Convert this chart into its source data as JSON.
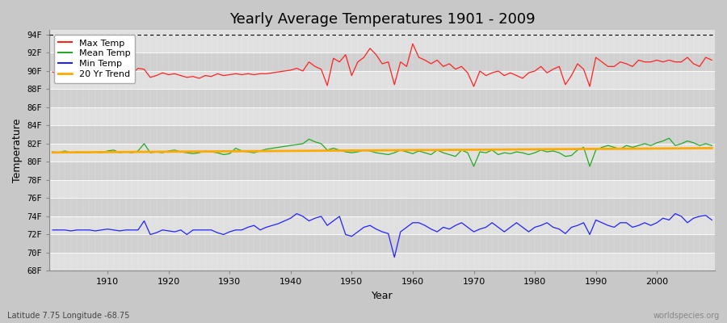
{
  "title": "Yearly Average Temperatures 1901 - 2009",
  "xlabel": "Year",
  "ylabel": "Temperature",
  "subtitle_left": "Latitude 7.75 Longitude -68.75",
  "subtitle_right": "worldspecies.org",
  "years": [
    1901,
    1902,
    1903,
    1904,
    1905,
    1906,
    1907,
    1908,
    1909,
    1910,
    1911,
    1912,
    1913,
    1914,
    1915,
    1916,
    1917,
    1918,
    1919,
    1920,
    1921,
    1922,
    1923,
    1924,
    1925,
    1926,
    1927,
    1928,
    1929,
    1930,
    1931,
    1932,
    1933,
    1934,
    1935,
    1936,
    1937,
    1938,
    1939,
    1940,
    1941,
    1942,
    1943,
    1944,
    1945,
    1946,
    1947,
    1948,
    1949,
    1950,
    1951,
    1952,
    1953,
    1954,
    1955,
    1956,
    1957,
    1958,
    1959,
    1960,
    1961,
    1962,
    1963,
    1964,
    1965,
    1966,
    1967,
    1968,
    1969,
    1970,
    1971,
    1972,
    1973,
    1974,
    1975,
    1976,
    1977,
    1978,
    1979,
    1980,
    1981,
    1982,
    1983,
    1984,
    1985,
    1986,
    1987,
    1988,
    1989,
    1990,
    1991,
    1992,
    1993,
    1994,
    1995,
    1996,
    1997,
    1998,
    1999,
    2000,
    2001,
    2002,
    2003,
    2004,
    2005,
    2006,
    2007,
    2008,
    2009
  ],
  "max_temp": [
    89.9,
    89.6,
    90.1,
    89.8,
    89.7,
    89.5,
    89.6,
    89.8,
    89.4,
    89.7,
    91.0,
    89.8,
    89.5,
    89.7,
    90.3,
    90.2,
    89.3,
    89.5,
    89.8,
    89.6,
    89.7,
    89.5,
    89.3,
    89.4,
    89.2,
    89.5,
    89.4,
    89.7,
    89.5,
    89.6,
    89.7,
    89.6,
    89.7,
    89.6,
    89.7,
    89.7,
    89.8,
    89.9,
    90.0,
    90.1,
    90.3,
    90.0,
    91.0,
    90.5,
    90.2,
    88.4,
    91.4,
    91.0,
    91.8,
    89.5,
    91.0,
    91.5,
    92.5,
    91.8,
    90.8,
    91.0,
    88.5,
    91.0,
    90.5,
    93.0,
    91.5,
    91.2,
    90.8,
    91.2,
    90.5,
    90.8,
    90.2,
    90.5,
    89.8,
    88.3,
    90.0,
    89.5,
    89.8,
    90.0,
    89.5,
    89.8,
    89.5,
    89.2,
    89.8,
    90.0,
    90.5,
    89.8,
    90.2,
    90.5,
    88.5,
    89.5,
    90.8,
    90.2,
    88.3,
    91.5,
    91.0,
    90.5,
    90.5,
    91.0,
    90.8,
    90.5,
    91.2,
    91.0,
    91.0,
    91.2,
    91.0,
    91.2,
    91.0,
    91.0,
    91.5,
    90.8,
    90.5,
    91.5,
    91.2
  ],
  "mean_temp": [
    81.1,
    81.0,
    81.2,
    81.0,
    81.1,
    81.0,
    81.0,
    81.1,
    81.0,
    81.2,
    81.3,
    81.0,
    81.1,
    81.0,
    81.2,
    82.0,
    81.0,
    81.1,
    81.0,
    81.2,
    81.3,
    81.1,
    81.0,
    80.9,
    81.0,
    81.2,
    81.1,
    81.0,
    80.8,
    80.9,
    81.5,
    81.2,
    81.1,
    81.0,
    81.2,
    81.4,
    81.5,
    81.6,
    81.7,
    81.8,
    81.9,
    82.0,
    82.5,
    82.2,
    82.0,
    81.3,
    81.5,
    81.3,
    81.1,
    81.0,
    81.1,
    81.3,
    81.2,
    81.0,
    80.9,
    80.8,
    81.0,
    81.3,
    81.1,
    80.9,
    81.2,
    81.0,
    80.8,
    81.3,
    81.0,
    80.8,
    80.6,
    81.3,
    81.0,
    79.5,
    81.1,
    81.0,
    81.3,
    80.8,
    81.0,
    80.9,
    81.1,
    81.0,
    80.8,
    81.0,
    81.3,
    81.1,
    81.2,
    81.0,
    80.6,
    80.7,
    81.3,
    81.6,
    79.5,
    81.3,
    81.6,
    81.8,
    81.6,
    81.4,
    81.8,
    81.6,
    81.8,
    82.0,
    81.8,
    82.1,
    82.3,
    82.6,
    81.8,
    82.0,
    82.3,
    82.1,
    81.8,
    82.0,
    81.8
  ],
  "min_temp": [
    72.5,
    72.5,
    72.5,
    72.4,
    72.5,
    72.5,
    72.5,
    72.4,
    72.5,
    72.6,
    72.5,
    72.4,
    72.5,
    72.5,
    72.5,
    73.5,
    72.0,
    72.2,
    72.5,
    72.4,
    72.3,
    72.5,
    72.0,
    72.5,
    72.5,
    72.5,
    72.5,
    72.2,
    72.0,
    72.3,
    72.5,
    72.5,
    72.8,
    73.0,
    72.5,
    72.8,
    73.0,
    73.2,
    73.5,
    73.8,
    74.3,
    74.0,
    73.5,
    73.8,
    74.0,
    73.0,
    73.5,
    74.0,
    72.0,
    71.8,
    72.3,
    72.8,
    73.0,
    72.6,
    72.3,
    72.1,
    69.5,
    72.3,
    72.8,
    73.3,
    73.3,
    73.0,
    72.6,
    72.3,
    72.8,
    72.6,
    73.0,
    73.3,
    72.8,
    72.3,
    72.6,
    72.8,
    73.3,
    72.8,
    72.3,
    72.8,
    73.3,
    72.8,
    72.3,
    72.8,
    73.0,
    73.3,
    72.8,
    72.6,
    72.1,
    72.8,
    73.0,
    73.3,
    72.0,
    73.6,
    73.3,
    73.0,
    72.8,
    73.3,
    73.3,
    72.8,
    73.0,
    73.3,
    73.0,
    73.3,
    73.8,
    73.6,
    74.3,
    74.0,
    73.3,
    73.8,
    74.0,
    74.1,
    73.6
  ],
  "ylim": [
    68,
    94.5
  ],
  "yticks": [
    68,
    70,
    72,
    74,
    76,
    78,
    80,
    82,
    84,
    86,
    88,
    90,
    92,
    94
  ],
  "ytick_labels": [
    "68F",
    "70F",
    "72F",
    "74F",
    "76F",
    "78F",
    "80F",
    "82F",
    "84F",
    "86F",
    "88F",
    "90F",
    "92F",
    "94F"
  ],
  "band_colors": [
    "#e0e0e0",
    "#d0d0d0"
  ],
  "hline_y": 94.0,
  "max_color": "#ff2222",
  "mean_color": "#22aa22",
  "min_color": "#2222ff",
  "trend_color": "#ffaa00",
  "legend_labels": [
    "Max Temp",
    "Mean Temp",
    "Min Temp",
    "20 Yr Trend"
  ]
}
